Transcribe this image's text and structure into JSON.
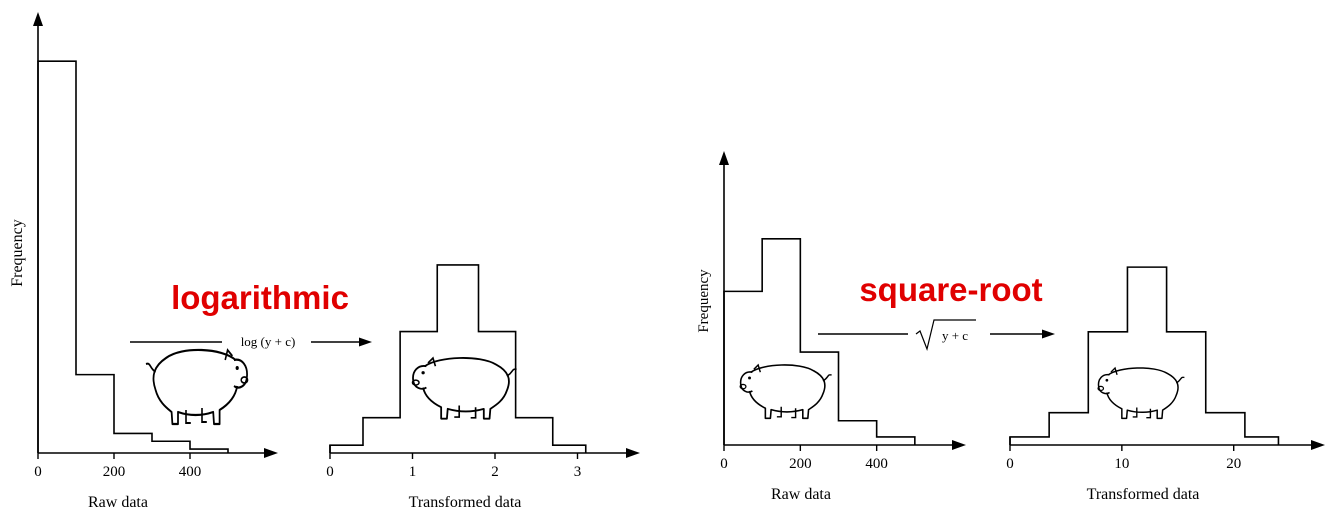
{
  "colors": {
    "ink": "#000000",
    "highlight": "#e00000",
    "background": "#ffffff"
  },
  "icons": [
    "pig-drawing-icon",
    "arrow-right-icon",
    "square-root-sign-icon"
  ],
  "panels": [
    {
      "title": "logarithmic",
      "ylabel": "Frequency",
      "transform_label": "log (y + c)",
      "raw": {
        "xlabel": "Raw data",
        "ticks": [
          "0",
          "200",
          "400"
        ]
      },
      "transformed": {
        "xlabel": "Transformed data",
        "ticks": [
          "0",
          "1",
          "2",
          "3"
        ]
      }
    },
    {
      "title": "square-root",
      "ylabel": "Frequency",
      "transform_label": "y + c",
      "raw": {
        "xlabel": "Raw data",
        "ticks": [
          "0",
          "200",
          "400"
        ]
      },
      "transformed": {
        "xlabel": "Transformed data",
        "ticks": [
          "0",
          "10",
          "20"
        ]
      }
    }
  ],
  "chart_data": [
    {
      "type": "bar",
      "subtype": "step-histogram",
      "title": "logarithmic",
      "xlabel": "Raw data",
      "ylabel": "Frequency",
      "bin_edges": [
        0,
        100,
        200,
        300,
        400,
        500
      ],
      "values": [
        100,
        20,
        5,
        3,
        1
      ],
      "xticks": [
        0,
        200,
        400
      ],
      "xlim": [
        0,
        600
      ],
      "ylim": [
        0,
        110
      ]
    },
    {
      "type": "bar",
      "subtype": "step-histogram",
      "title": "logarithmic",
      "xlabel": "Transformed data",
      "ylabel": "Frequency",
      "bin_edges": [
        0,
        0.4,
        0.85,
        1.3,
        1.8,
        2.25,
        2.7,
        3.1
      ],
      "values": [
        2,
        9,
        31,
        48,
        31,
        9,
        2
      ],
      "xticks": [
        0,
        1,
        2,
        3
      ],
      "xlim": [
        0,
        3.6
      ],
      "ylim": [
        0,
        110
      ]
    },
    {
      "type": "bar",
      "subtype": "step-histogram",
      "title": "square-root",
      "xlabel": "Raw data",
      "ylabel": "Frequency",
      "bin_edges": [
        0,
        100,
        200,
        300,
        400,
        500
      ],
      "values": [
        38,
        51,
        23,
        6,
        2
      ],
      "xticks": [
        0,
        200,
        400
      ],
      "xlim": [
        0,
        600
      ],
      "ylim": [
        0,
        70
      ]
    },
    {
      "type": "bar",
      "subtype": "step-histogram",
      "title": "square-root",
      "xlabel": "Transformed data",
      "ylabel": "Frequency",
      "bin_edges": [
        0,
        3.5,
        7,
        10.5,
        14,
        17.5,
        21,
        24
      ],
      "values": [
        2,
        8,
        28,
        44,
        28,
        8,
        2
      ],
      "xticks": [
        0,
        10,
        20
      ],
      "xlim": [
        0,
        27
      ],
      "ylim": [
        0,
        70
      ]
    }
  ]
}
